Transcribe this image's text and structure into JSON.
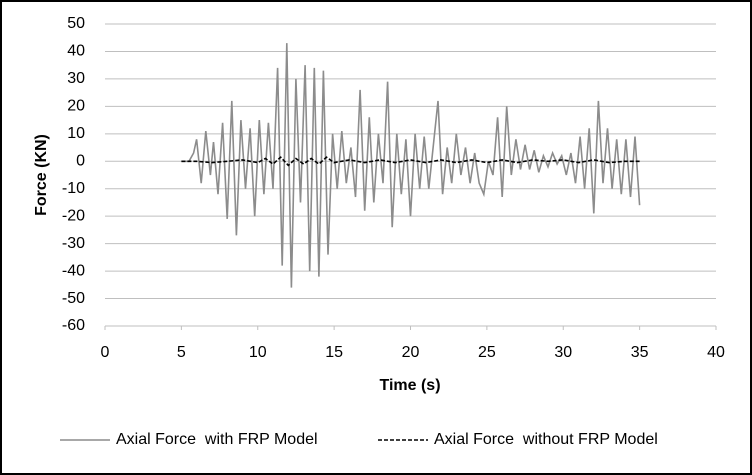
{
  "chart_data": {
    "type": "line",
    "xlabel": "Time (s)",
    "ylabel": "Force (KN)",
    "xlim": [
      0,
      40
    ],
    "xticks": [
      0,
      5,
      10,
      15,
      20,
      25,
      30,
      35,
      40
    ],
    "ylim": [
      -60,
      50
    ],
    "yticks": [
      -60,
      -50,
      -40,
      -30,
      -20,
      -10,
      0,
      10,
      20,
      30,
      40,
      50
    ],
    "grid": true,
    "legend": "bottom",
    "series": [
      {
        "name": "Axial Force  with FRP Model",
        "color": "#8c8c8c",
        "dash": false,
        "x": [
          5,
          5.5,
          5.8,
          6.0,
          6.3,
          6.6,
          6.9,
          7.1,
          7.4,
          7.7,
          8.0,
          8.3,
          8.6,
          8.9,
          9.2,
          9.5,
          9.8,
          10.1,
          10.4,
          10.7,
          11.0,
          11.3,
          11.6,
          11.9,
          12.2,
          12.5,
          12.8,
          13.1,
          13.4,
          13.7,
          14.0,
          14.3,
          14.6,
          14.9,
          15.2,
          15.5,
          15.8,
          16.1,
          16.4,
          16.7,
          17.0,
          17.3,
          17.6,
          17.9,
          18.2,
          18.5,
          18.8,
          19.1,
          19.4,
          19.7,
          20.0,
          20.3,
          20.6,
          20.9,
          21.2,
          21.5,
          21.8,
          22.1,
          22.4,
          22.7,
          23.0,
          23.3,
          23.6,
          23.9,
          24.2,
          24.5,
          24.8,
          25.1,
          25.4,
          25.7,
          26.0,
          26.3,
          26.6,
          26.9,
          27.2,
          27.5,
          27.8,
          28.1,
          28.4,
          28.7,
          29.0,
          29.3,
          29.6,
          29.9,
          30.2,
          30.5,
          30.8,
          31.1,
          31.4,
          31.7,
          32.0,
          32.3,
          32.6,
          32.9,
          33.2,
          33.5,
          33.8,
          34.1,
          34.4,
          34.7,
          35.0
        ],
        "values": [
          0,
          0,
          3,
          8,
          -8,
          11,
          -5,
          7,
          -12,
          14,
          -21,
          22,
          -27,
          15,
          -10,
          12,
          -20,
          15,
          -12,
          14,
          -10,
          34,
          -38,
          43,
          -46,
          30,
          -15,
          35,
          -40,
          34,
          -42,
          33,
          -34,
          10,
          -10,
          11,
          -8,
          5,
          -13,
          26,
          -18,
          16,
          -15,
          10,
          -8,
          29,
          -24,
          10,
          -12,
          8,
          -20,
          10,
          -10,
          9,
          -10,
          6,
          22,
          -12,
          5,
          -8,
          10,
          -5,
          5,
          -8,
          3,
          -8,
          -12,
          0,
          -5,
          16,
          -13,
          20,
          -5,
          8,
          -3,
          6,
          -3,
          4,
          -4,
          2,
          -2,
          3,
          -1,
          2,
          -5,
          3,
          -8,
          9,
          -10,
          12,
          -19,
          22,
          -8,
          12,
          -10,
          8,
          -12,
          8,
          -13,
          9,
          -16
        ]
      },
      {
        "name": "Axial Force  without FRP Model",
        "color": "#000000",
        "dash": true,
        "x": [
          5,
          6,
          7,
          8,
          9,
          10,
          10.5,
          11,
          11.5,
          12,
          12.5,
          13,
          13.5,
          14,
          14.5,
          15,
          16,
          17,
          18,
          19,
          20,
          21,
          22,
          23,
          24,
          25,
          26,
          27,
          28,
          29,
          30,
          31,
          32,
          33,
          34,
          35
        ],
        "values": [
          0,
          0,
          -0.5,
          0,
          0.5,
          -0.5,
          1,
          -1,
          1.5,
          -1.5,
          1,
          -1,
          1,
          -1,
          1.5,
          -0.5,
          0.5,
          -0.5,
          0.5,
          -0.5,
          0.5,
          -0.5,
          0.5,
          -0.5,
          0.5,
          -0.5,
          0.5,
          -0.5,
          0.5,
          0,
          0.5,
          -0.5,
          0.5,
          -0.5,
          0,
          0
        ]
      }
    ]
  }
}
